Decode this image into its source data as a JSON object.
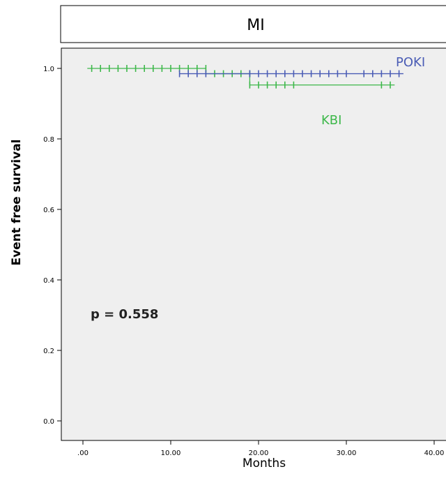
{
  "chart_data": {
    "type": "line",
    "title": "MI",
    "xlabel": "Months",
    "ylabel": "Event free survival",
    "xlim": [
      0,
      40
    ],
    "ylim": [
      0,
      1.0
    ],
    "x_ticks": [
      ".00",
      "10.00",
      "20.00",
      "30.00",
      "40.00"
    ],
    "y_ticks": [
      "0.0",
      "0.2",
      "0.4",
      "0.6",
      "0.8",
      "1.0"
    ],
    "annotation": "p = 0.558",
    "grid": false,
    "background": "#efefef",
    "series": [
      {
        "name": "POKI",
        "color": "#4a5cb5",
        "steps": [
          [
            11,
            0.985
          ],
          [
            36.5,
            0.985
          ]
        ],
        "censored": [
          11,
          12,
          13,
          14,
          19,
          20,
          21,
          22,
          23,
          24,
          25,
          26,
          27,
          28,
          29,
          30,
          32,
          33,
          34,
          35,
          36
        ]
      },
      {
        "name": "KBI",
        "color": "#3db84a",
        "steps": [
          [
            0.5,
            1.0
          ],
          [
            14,
            1.0
          ],
          [
            14,
            0.985
          ],
          [
            19,
            0.985
          ],
          [
            19,
            0.953
          ],
          [
            35.5,
            0.953
          ]
        ],
        "censored_upper": [
          1,
          2,
          3,
          4,
          5,
          6,
          7,
          8,
          9,
          10,
          11,
          12,
          13,
          14,
          15,
          16,
          17,
          18,
          19
        ],
        "censored_lower": [
          19,
          20,
          21,
          22,
          23,
          24,
          34,
          35
        ]
      }
    ]
  }
}
